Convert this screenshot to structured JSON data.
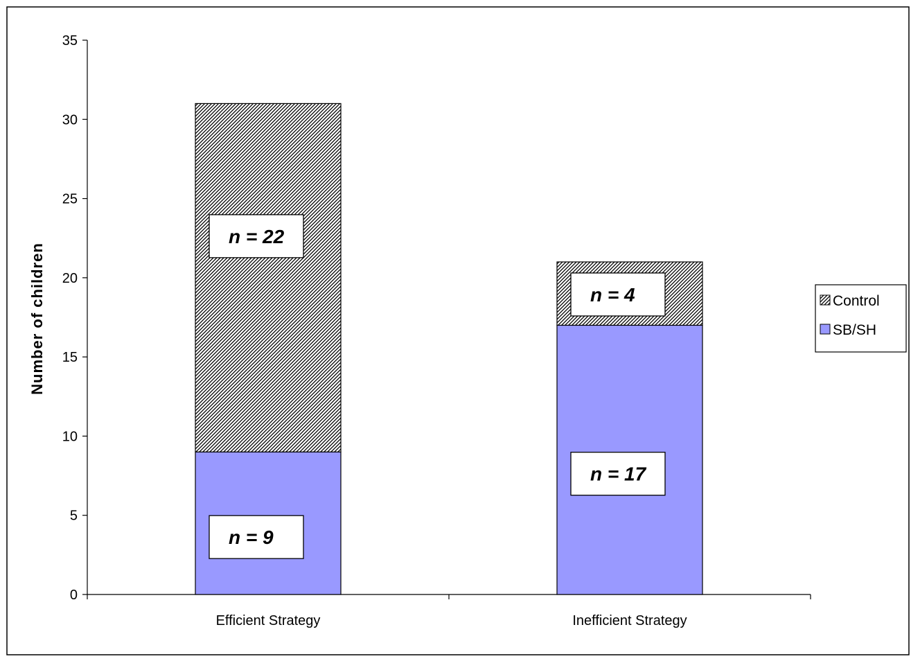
{
  "chart_data": {
    "type": "bar",
    "stacked": true,
    "categories": [
      "Efficient Strategy",
      "Inefficient Strategy"
    ],
    "series": [
      {
        "name": "SB/SH",
        "values": [
          9,
          17
        ],
        "labels": [
          "n = 9",
          "n = 17"
        ],
        "color": "#9999ff",
        "pattern": "solid"
      },
      {
        "name": "Control",
        "values": [
          22,
          4
        ],
        "labels": [
          "n = 22",
          "n = 4"
        ],
        "color": "#000000",
        "pattern": "diagonal-hatch"
      }
    ],
    "title": "",
    "xlabel": "",
    "ylabel": "Number of children",
    "ylim": [
      0,
      35
    ],
    "yticks": [
      0,
      5,
      10,
      15,
      20,
      25,
      30,
      35
    ],
    "legend_order": [
      "Control",
      "SB/SH"
    ],
    "legend_position": "right",
    "grid": false
  }
}
